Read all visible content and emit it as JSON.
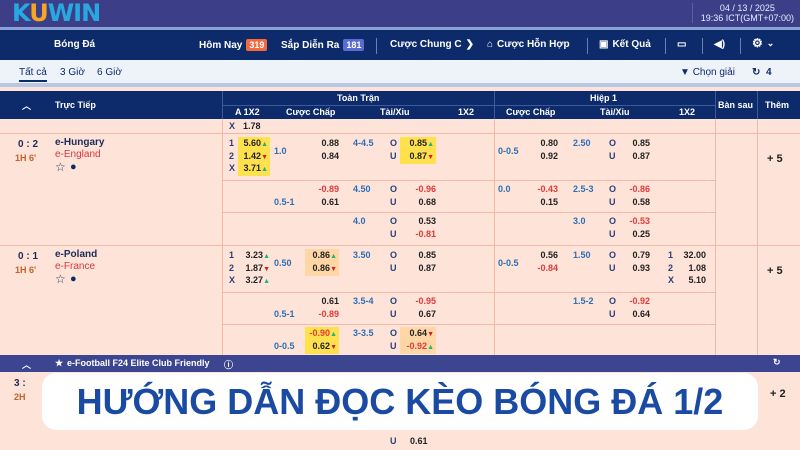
{
  "header": {
    "date": "04 / 13 / 2025",
    "time": "19:36 ICT(GMT+07:00)",
    "logo": "KUWIN"
  },
  "nav": {
    "bong_da": "Bóng Đá",
    "today": "Hôm Nay",
    "today_count": "319",
    "upcoming": "Sắp Diễn Ra",
    "upcoming_count": "181",
    "outright": "Cược Chung C",
    "parlay": "Cược Hỗn Hợp",
    "results": "Kết Quả",
    "badge_today_color": "#f26a3d",
    "badge_upcoming_color": "#5b6bd0"
  },
  "subtabs": {
    "all": "Tất cả",
    "h3": "3 Giờ",
    "h6": "6 Giờ",
    "filter": "Chọn giải",
    "refresh_count": "4"
  },
  "table_header": {
    "live": "Trực Tiếp",
    "full_time": "Toàn Trận",
    "first_half": "Hiệp 1",
    "a1x2": "A 1X2",
    "hdp": "Cược Chấp",
    "ou": "Tài/Xỉu",
    "x12": "1X2",
    "next_goal": "Bàn sau",
    "more": "Thêm"
  },
  "partial_row": {
    "label": "X",
    "value": "1.78"
  },
  "matches": [
    {
      "score": "0 : 2",
      "time": "1H 6'",
      "home": "e-Hungary",
      "away": "e-England",
      "more": "+ 5",
      "a1x2": [
        [
          "1",
          "5.60",
          "y",
          "up"
        ],
        [
          "2",
          "1.42",
          "y",
          "down"
        ],
        [
          "X",
          "3.71",
          "y",
          "up"
        ]
      ],
      "lines": [
        {
          "hdp_line": "1.0",
          "hdp": [
            [
              "0.88"
            ],
            [
              "0.84"
            ]
          ],
          "ou_line": "4-4.5",
          "ou": [
            [
              "0.85",
              "y",
              "up"
            ],
            [
              "0.87",
              "y",
              "down"
            ]
          ],
          "h_hdp_line": "0-0.5",
          "h_hdp": [
            [
              "0.80"
            ],
            [
              "0.92"
            ]
          ],
          "h_ou_line": "2.50",
          "h_ou": [
            [
              "0.85"
            ],
            [
              "0.87"
            ]
          ]
        },
        {
          "hdp_line": "0.5-1",
          "hdp": [
            [
              "-0.89"
            ],
            [
              "0.61"
            ]
          ],
          "ou_line": "4.50",
          "ou": [
            [
              "-0.96"
            ],
            [
              "0.68"
            ]
          ],
          "h_hdp_line": "0.0",
          "h_hdp": [
            [
              "-0.43"
            ],
            [
              "0.15"
            ]
          ],
          "h_ou_line": "2.5-3",
          "h_ou": [
            [
              "-0.86"
            ],
            [
              "0.58"
            ]
          ]
        },
        {
          "hdp_line": "",
          "hdp": [],
          "ou_line": "4.0",
          "ou": [
            [
              "0.53"
            ],
            [
              "-0.81"
            ]
          ],
          "h_hdp_line": "",
          "h_hdp": [],
          "h_ou_line": "3.0",
          "h_ou": [
            [
              "-0.53"
            ],
            [
              "0.25"
            ]
          ]
        }
      ]
    },
    {
      "score": "0 : 1",
      "time": "1H 6'",
      "home": "e-Poland",
      "away": "e-France",
      "more": "+ 5",
      "a1x2": [
        [
          "1",
          "3.23",
          "",
          "up"
        ],
        [
          "2",
          "1.87",
          "",
          "down"
        ],
        [
          "X",
          "3.27",
          "",
          "up"
        ]
      ],
      "h_1x2": [
        [
          "1",
          "32.00"
        ],
        [
          "2",
          "1.08"
        ],
        [
          "X",
          "5.10"
        ]
      ],
      "lines": [
        {
          "hdp_line": "0.50",
          "hdp": [
            [
              "0.86",
              "o",
              "up"
            ],
            [
              "0.86",
              "o",
              "down"
            ]
          ],
          "ou_line": "3.50",
          "ou": [
            [
              "0.85"
            ],
            [
              "0.87"
            ]
          ],
          "h_hdp_line": "0-0.5",
          "h_hdp": [
            [
              "0.56"
            ],
            [
              "-0.84"
            ]
          ],
          "h_ou_line": "1.50",
          "h_ou": [
            [
              "0.79"
            ],
            [
              "0.93"
            ]
          ]
        },
        {
          "hdp_line": "0.5-1",
          "hdp": [
            [
              "0.61"
            ],
            [
              "-0.89"
            ]
          ],
          "ou_line": "3.5-4",
          "ou": [
            [
              "-0.95"
            ],
            [
              "0.67"
            ]
          ],
          "h_hdp_line": "",
          "h_hdp": [],
          "h_ou_line": "1.5-2",
          "h_ou": [
            [
              "-0.92"
            ],
            [
              "0.64"
            ]
          ]
        },
        {
          "hdp_line": "0-0.5",
          "hdp": [
            [
              "-0.90",
              "y",
              "up"
            ],
            [
              "0.62",
              "y",
              "down"
            ]
          ],
          "ou_line": "3-3.5",
          "ou": [
            [
              "0.64",
              "o",
              "down"
            ],
            [
              "-0.92",
              "o",
              "up"
            ]
          ],
          "h_hdp_line": "",
          "h_hdp": [],
          "h_ou_line": "",
          "h_ou": []
        }
      ]
    }
  ],
  "league": {
    "name": "e-Football F24 Elite Club Friendly"
  },
  "match3": {
    "score": "3 :",
    "time": "2H",
    "more": "+ 2",
    "ou_label": "U",
    "ou_value": "0.61"
  },
  "banner": {
    "title": "HƯỚNG DẪN ĐỌC KÈO BÓNG ĐÁ 1/2"
  }
}
